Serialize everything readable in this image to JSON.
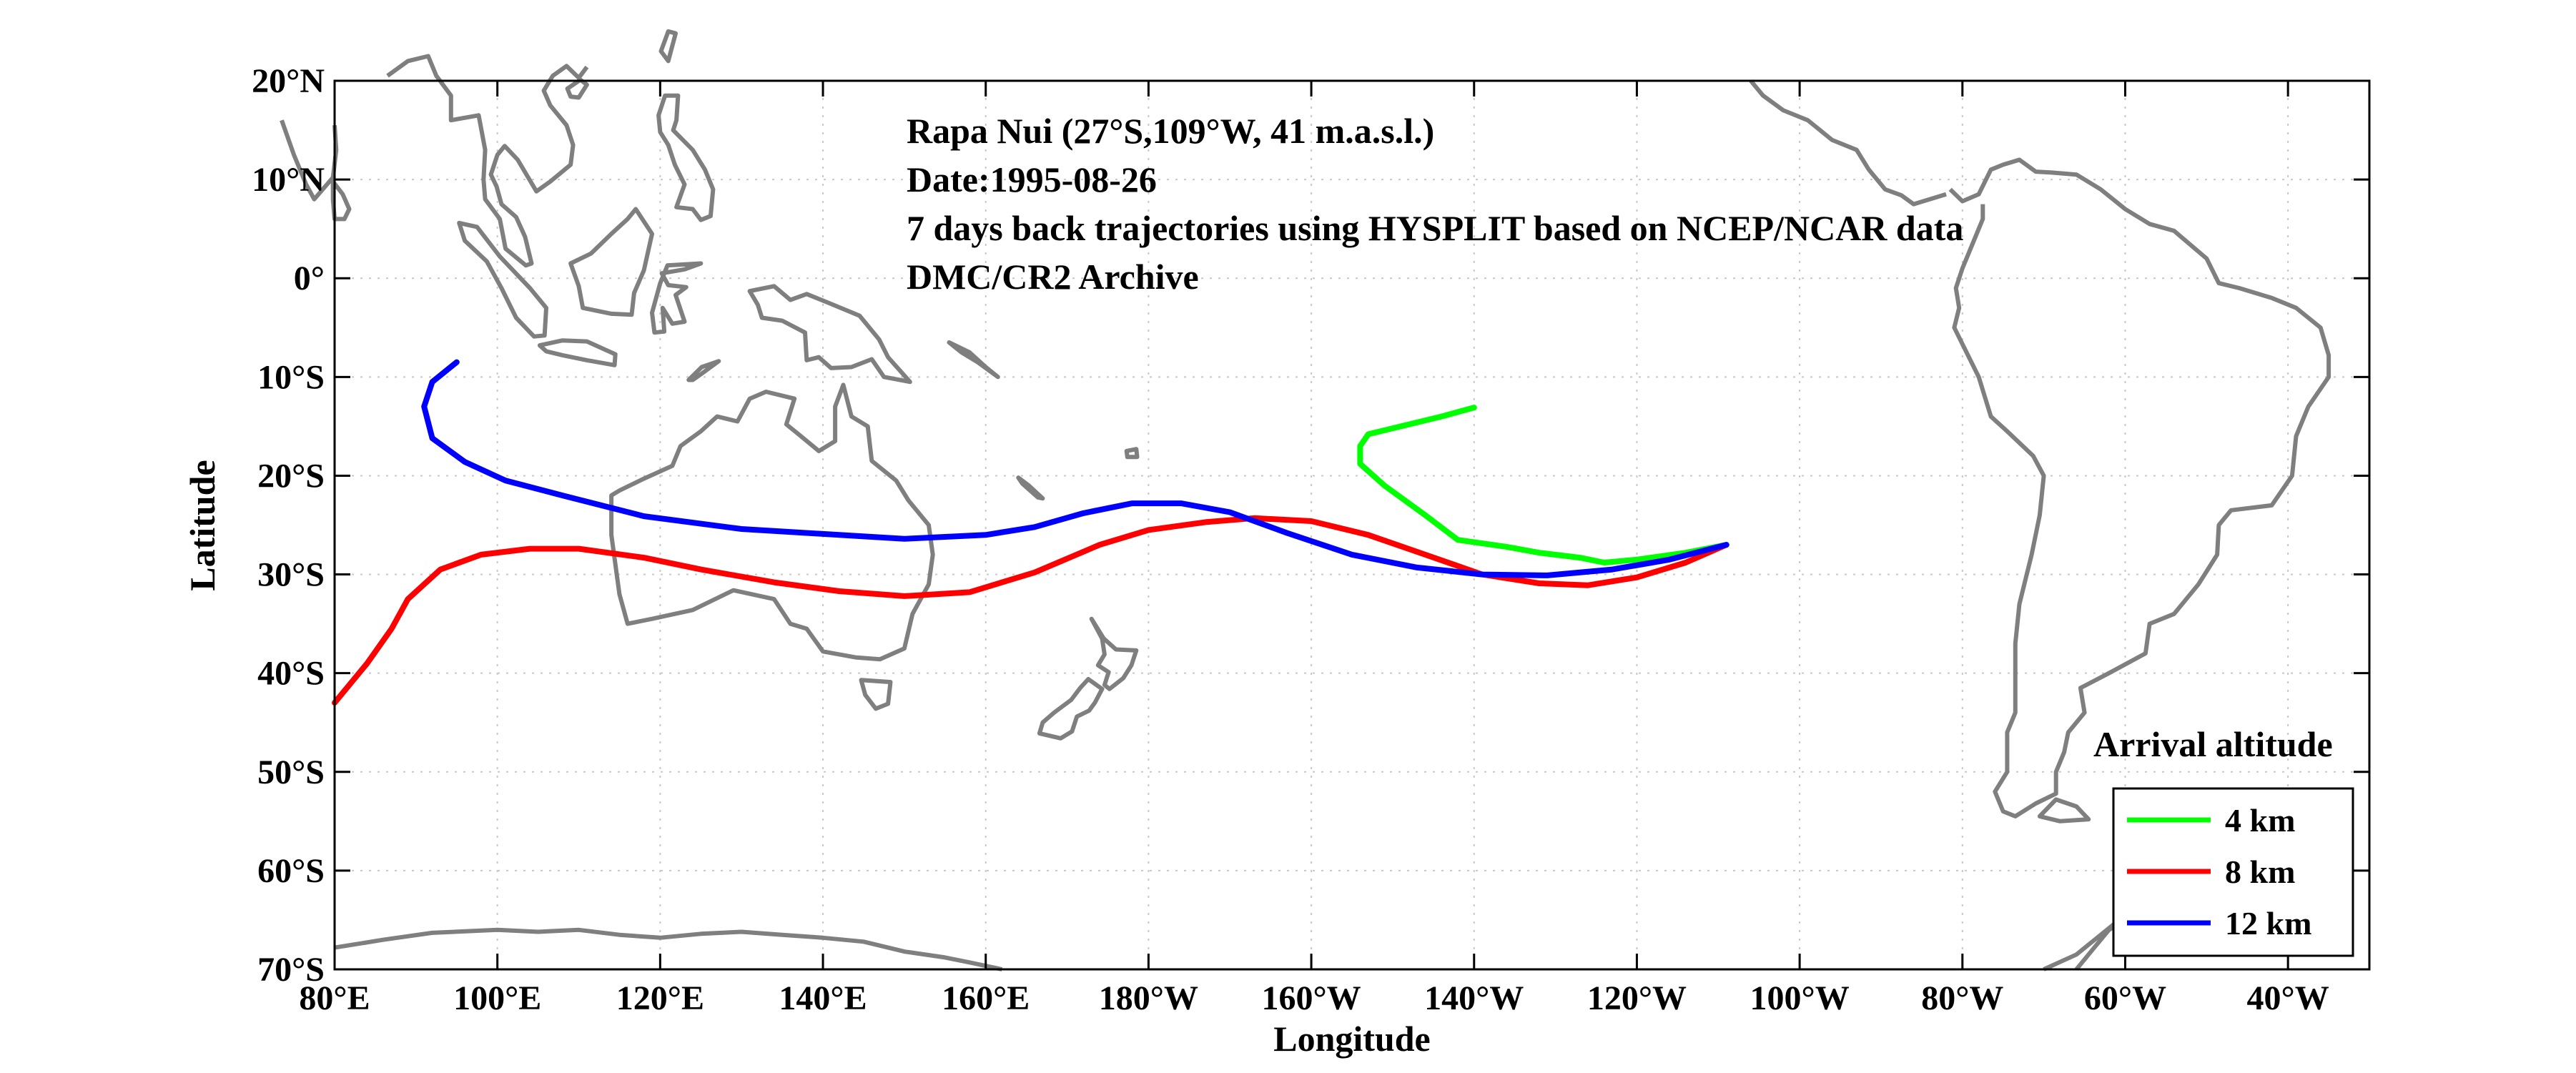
{
  "chart_data": {
    "type": "line",
    "xlabel": "Longitude",
    "ylabel": "Latitude",
    "xlim": [
      80,
      330
    ],
    "ylim": [
      -70,
      20
    ],
    "grid": true,
    "legend_title": "Arrival altitude",
    "legend_placement": "bottom-right",
    "x_ticks": [
      {
        "value": 80,
        "label": "80°E"
      },
      {
        "value": 100,
        "label": "100°E"
      },
      {
        "value": 120,
        "label": "120°E"
      },
      {
        "value": 140,
        "label": "140°E"
      },
      {
        "value": 160,
        "label": "160°E"
      },
      {
        "value": 180,
        "label": "180°W"
      },
      {
        "value": 200,
        "label": "160°W"
      },
      {
        "value": 220,
        "label": "140°W"
      },
      {
        "value": 240,
        "label": "120°W"
      },
      {
        "value": 260,
        "label": "100°W"
      },
      {
        "value": 280,
        "label": "80°W"
      },
      {
        "value": 300,
        "label": "60°W"
      },
      {
        "value": 320,
        "label": "40°W"
      }
    ],
    "y_ticks": [
      {
        "value": 20,
        "label": "20°N"
      },
      {
        "value": 10,
        "label": "10°N"
      },
      {
        "value": 0,
        "label": "0°"
      },
      {
        "value": -10,
        "label": "10°S"
      },
      {
        "value": -20,
        "label": "20°S"
      },
      {
        "value": -30,
        "label": "30°S"
      },
      {
        "value": -40,
        "label": "40°S"
      },
      {
        "value": -50,
        "label": "50°S"
      },
      {
        "value": -60,
        "label": "60°S"
      },
      {
        "value": -70,
        "label": "70°S"
      }
    ],
    "annotations": [
      "Rapa Nui (27°S,109°W, 41 m.a.s.l.)",
      "Date:1995-08-26",
      "7 days back trajectories using HYSPLIT based on NCEP/NCAR data",
      "DMC/CR2 Archive"
    ],
    "coastline_color": "#7f7f7f",
    "series": [
      {
        "name": "4 km",
        "color": "#00ff00",
        "points": [
          [
            251,
            -27
          ],
          [
            246,
            -27.8
          ],
          [
            240,
            -28.5
          ],
          [
            236,
            -28.8
          ],
          [
            233,
            -28.3
          ],
          [
            228,
            -27.8
          ],
          [
            224,
            -27.2
          ],
          [
            218,
            -26.5
          ],
          [
            214,
            -24
          ],
          [
            209,
            -21
          ],
          [
            206,
            -18.8
          ],
          [
            206,
            -17
          ],
          [
            207,
            -15.8
          ],
          [
            211,
            -15
          ],
          [
            216,
            -14
          ],
          [
            220,
            -13.1
          ]
        ]
      },
      {
        "name": "8 km",
        "color": "#ff0000",
        "points": [
          [
            251,
            -27
          ],
          [
            246,
            -28.8
          ],
          [
            240,
            -30.3
          ],
          [
            234,
            -31.1
          ],
          [
            228,
            -30.9
          ],
          [
            221,
            -30
          ],
          [
            214,
            -28
          ],
          [
            207,
            -26
          ],
          [
            200,
            -24.6
          ],
          [
            193,
            -24.3
          ],
          [
            187,
            -24.7
          ],
          [
            180,
            -25.5
          ],
          [
            174,
            -27
          ],
          [
            166,
            -29.8
          ],
          [
            158,
            -31.8
          ],
          [
            150,
            -32.2
          ],
          [
            142,
            -31.7
          ],
          [
            134,
            -30.8
          ],
          [
            125,
            -29.5
          ],
          [
            118,
            -28.3
          ],
          [
            110,
            -27.4
          ],
          [
            104,
            -27.4
          ],
          [
            98,
            -28
          ],
          [
            93,
            -29.5
          ],
          [
            89,
            -32.5
          ],
          [
            87,
            -35.5
          ],
          [
            84,
            -39
          ],
          [
            80,
            -43
          ]
        ]
      },
      {
        "name": "12 km",
        "color": "#0000ff",
        "points": [
          [
            251,
            -27
          ],
          [
            244,
            -28.5
          ],
          [
            237,
            -29.5
          ],
          [
            229,
            -30.1
          ],
          [
            221,
            -30
          ],
          [
            213,
            -29.3
          ],
          [
            205,
            -28
          ],
          [
            197,
            -25.8
          ],
          [
            190,
            -23.7
          ],
          [
            184,
            -22.8
          ],
          [
            178,
            -22.8
          ],
          [
            172,
            -23.8
          ],
          [
            166,
            -25.2
          ],
          [
            160,
            -26
          ],
          [
            150,
            -26.4
          ],
          [
            140,
            -25.9
          ],
          [
            130,
            -25.4
          ],
          [
            118,
            -24.1
          ],
          [
            108,
            -22
          ],
          [
            101,
            -20.5
          ],
          [
            96,
            -18.6
          ],
          [
            92,
            -16.2
          ],
          [
            91,
            -13
          ],
          [
            92,
            -10.5
          ],
          [
            95,
            -8.5
          ]
        ]
      }
    ]
  }
}
